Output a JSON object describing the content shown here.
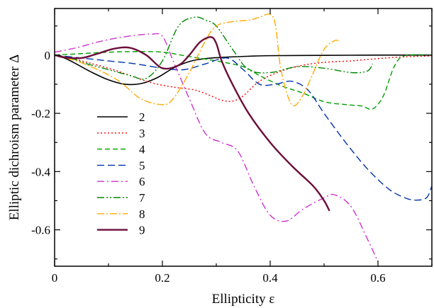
{
  "chart_data": {
    "type": "line",
    "title": "",
    "xlabel": "Ellipticity ε",
    "ylabel": "Elliptic dichroism parameter Δ",
    "xlim": [
      0,
      0.7
    ],
    "ylim": [
      -0.725,
      0.16
    ],
    "xticks": [
      0,
      0.2,
      0.4,
      0.6
    ],
    "xtick_labels": [
      "0",
      "0.2",
      "0.4",
      "0.6"
    ],
    "yticks": [
      0,
      -0.2,
      -0.4,
      -0.6
    ],
    "ytick_labels": [
      "0",
      "-0.2",
      "-0.4",
      "-0.6"
    ],
    "grid": false,
    "legend_position": "left",
    "series": [
      {
        "name": "2",
        "color": "#000000",
        "dash": "solid",
        "width": 1.6,
        "x": [
          0.0,
          0.01,
          0.02,
          0.04,
          0.07,
          0.1,
          0.13,
          0.16,
          0.19,
          0.22,
          0.25,
          0.28,
          0.32,
          0.36,
          0.4,
          0.5,
          0.6,
          0.7
        ],
        "y": [
          0.0,
          -0.006,
          -0.011,
          -0.03,
          -0.06,
          -0.085,
          -0.1,
          -0.098,
          -0.078,
          -0.045,
          -0.022,
          -0.012,
          -0.007,
          -0.004,
          -0.002,
          -0.001,
          0.0,
          0.0
        ]
      },
      {
        "name": "3",
        "color": "#ff0000",
        "dash": "2,3",
        "width": 1.4,
        "x": [
          0.0,
          0.03,
          0.06,
          0.1,
          0.14,
          0.18,
          0.22,
          0.26,
          0.29,
          0.31,
          0.33,
          0.35,
          0.38,
          0.42,
          0.46,
          0.5,
          0.55,
          0.6,
          0.65,
          0.7
        ],
        "y": [
          0.0,
          -0.01,
          -0.025,
          -0.045,
          -0.07,
          -0.095,
          -0.11,
          -0.12,
          -0.14,
          -0.155,
          -0.158,
          -0.14,
          -0.09,
          -0.055,
          -0.035,
          -0.025,
          -0.02,
          -0.012,
          -0.006,
          -0.003
        ]
      },
      {
        "name": "4",
        "color": "#00a000",
        "dash": "7,4",
        "width": 1.4,
        "x": [
          0.0,
          0.05,
          0.1,
          0.15,
          0.2,
          0.25,
          0.3,
          0.35,
          0.38,
          0.42,
          0.46,
          0.5,
          0.54,
          0.57,
          0.59,
          0.61,
          0.63,
          0.65,
          0.7
        ],
        "y": [
          0.0,
          0.005,
          0.01,
          0.012,
          0.01,
          -0.005,
          -0.02,
          -0.04,
          -0.07,
          -0.105,
          -0.13,
          -0.16,
          -0.17,
          -0.175,
          -0.185,
          -0.14,
          -0.04,
          -0.002,
          0.0
        ]
      },
      {
        "name": "5",
        "color": "#0033aa",
        "dash": "10,5",
        "width": 1.4,
        "x": [
          0.0,
          0.05,
          0.1,
          0.15,
          0.2,
          0.24,
          0.28,
          0.32,
          0.35,
          0.38,
          0.41,
          0.44,
          0.47,
          0.5,
          0.54,
          0.58,
          0.62,
          0.65,
          0.67,
          0.69,
          0.7
        ],
        "y": [
          0.0,
          -0.01,
          -0.02,
          -0.03,
          -0.045,
          -0.05,
          -0.03,
          -0.01,
          -0.05,
          -0.1,
          -0.1,
          -0.09,
          -0.12,
          -0.2,
          -0.3,
          -0.39,
          -0.46,
          -0.49,
          -0.498,
          -0.49,
          -0.45
        ]
      },
      {
        "name": "6",
        "color": "#cc33cc",
        "dash": "10,4,2,4",
        "width": 1.4,
        "x": [
          0.0,
          0.04,
          0.08,
          0.12,
          0.16,
          0.18,
          0.2,
          0.22,
          0.25,
          0.28,
          0.31,
          0.34,
          0.37,
          0.4,
          0.43,
          0.46,
          0.5,
          0.52,
          0.55,
          0.58,
          0.6
        ],
        "y": [
          0.01,
          0.025,
          0.045,
          0.06,
          0.07,
          0.072,
          0.065,
          -0.02,
          -0.15,
          -0.27,
          -0.3,
          -0.33,
          -0.45,
          -0.55,
          -0.57,
          -0.53,
          -0.49,
          -0.48,
          -0.52,
          -0.63,
          -0.71
        ]
      },
      {
        "name": "7",
        "color": "#008800",
        "dash": "10,3,2,3,2,3",
        "width": 1.4,
        "x": [
          0.0,
          0.03,
          0.06,
          0.1,
          0.14,
          0.17,
          0.2,
          0.23,
          0.26,
          0.28,
          0.3,
          0.33,
          0.36,
          0.4,
          0.45,
          0.5,
          0.55,
          0.58,
          0.59
        ],
        "y": [
          0.0,
          -0.01,
          -0.03,
          -0.05,
          -0.07,
          -0.08,
          -0.02,
          0.1,
          0.13,
          0.12,
          0.1,
          0.02,
          -0.05,
          -0.06,
          -0.04,
          -0.045,
          -0.06,
          -0.055,
          -0.03
        ]
      },
      {
        "name": "8",
        "color": "#ffaa00",
        "dash": "10,3,2,3",
        "width": 1.4,
        "x": [
          0.0,
          0.04,
          0.08,
          0.12,
          0.16,
          0.2,
          0.22,
          0.25,
          0.28,
          0.3,
          0.33,
          0.36,
          0.38,
          0.4,
          0.41,
          0.42,
          0.44,
          0.46,
          0.48,
          0.5,
          0.52,
          0.53
        ],
        "y": [
          0.0,
          -0.02,
          -0.05,
          -0.09,
          -0.15,
          -0.17,
          -0.15,
          -0.06,
          0.05,
          0.1,
          0.115,
          0.12,
          0.13,
          0.14,
          0.1,
          -0.05,
          -0.17,
          -0.14,
          -0.06,
          0.02,
          0.05,
          0.045
        ]
      },
      {
        "name": "9",
        "color": "#6b0f3a",
        "dash": "solid",
        "width": 2.4,
        "x": [
          0.0,
          0.02,
          0.05,
          0.08,
          0.11,
          0.14,
          0.17,
          0.2,
          0.23,
          0.25,
          0.27,
          0.29,
          0.3,
          0.31,
          0.33,
          0.36,
          0.4,
          0.44,
          0.48,
          0.5,
          0.51
        ],
        "y": [
          0.0,
          -0.008,
          -0.01,
          0.005,
          0.022,
          0.025,
          0.0,
          -0.045,
          -0.035,
          0.0,
          0.045,
          0.062,
          0.04,
          -0.02,
          -0.1,
          -0.2,
          -0.3,
          -0.38,
          -0.45,
          -0.5,
          -0.535
        ]
      }
    ]
  }
}
